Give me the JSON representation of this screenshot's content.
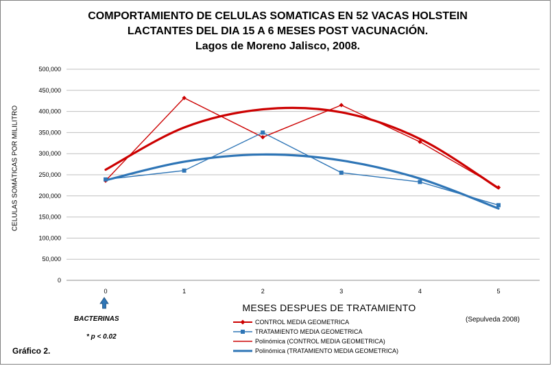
{
  "title_lines": [
    "COMPORTAMIENTO DE CELULAS SOMATICAS EN 52 VACAS  HOLSTEIN",
    "LACTANTES  DEL  DIA 15 A 6 MESES POST VACUNACIÓN.",
    "Lagos de Moreno Jalisco, 2008."
  ],
  "chart_data": {
    "type": "line",
    "title": "COMPORTAMIENTO DE CELULAS SOMATICAS EN 52 VACAS  HOLSTEIN LACTANTES  DEL  DIA 15 A 6 MESES POST VACUNACIÓN. Lagos de Moreno Jalisco, 2008.",
    "xlabel": "MESES  DESPUES DE TRATAMIENTO",
    "ylabel": "CELULAS SOMÁTICAS POR MILILITRO",
    "x": [
      0,
      1,
      2,
      3,
      4,
      5
    ],
    "x_tick_labels": [
      "0",
      "1",
      "2",
      "3",
      "4",
      "5"
    ],
    "y_tick_labels": [
      "0",
      "50,000",
      "100,000",
      "150,000",
      "200,000",
      "250,000",
      "300,000",
      "350,000",
      "400,000",
      "450,000",
      "500,000"
    ],
    "ylim": [
      0,
      500000
    ],
    "grid": true,
    "legend_position": "bottom",
    "series": [
      {
        "name": "CONTROL MEDIA GEOMETRICA",
        "kind": "data",
        "marker": "diamond",
        "color": "#cc0000",
        "values": [
          236000,
          432000,
          339000,
          415000,
          328000,
          220000
        ]
      },
      {
        "name": "TRATAMIENTO  MEDIA GEOMETRICA",
        "kind": "data",
        "marker": "square",
        "color": "#2e75b6",
        "values": [
          239000,
          260000,
          350000,
          255000,
          233000,
          178000
        ]
      },
      {
        "name": "Polinómica (CONTROL MEDIA GEOMETRICA)",
        "kind": "trend",
        "color": "#cc0000",
        "values": [
          262000,
          362000,
          405000,
          398000,
          335000,
          218000
        ]
      },
      {
        "name": "Polinómica (TRATAMIENTO  MEDIA GEOMETRICA)",
        "kind": "trend",
        "color": "#2e75b6",
        "values": [
          237000,
          281000,
          298000,
          284000,
          241000,
          170000
        ]
      }
    ]
  },
  "annotations": {
    "bacterinas": "BACTERINAS",
    "pvalue": "* p < 0.02",
    "grafico": "Gráfico 2.",
    "source": "(Sepulveda 2008)"
  },
  "legend": {
    "items": [
      "CONTROL MEDIA GEOMETRICA",
      "TRATAMIENTO  MEDIA GEOMETRICA",
      "Polinómica (CONTROL MEDIA GEOMETRICA)",
      "Polinómica (TRATAMIENTO  MEDIA GEOMETRICA)"
    ]
  },
  "colors": {
    "control": "#cc0000",
    "treatment": "#2e75b6",
    "arrow": "#2e75b6",
    "grid": "#bfbfbf"
  },
  "icons": {
    "arrow": "arrow-up-icon"
  }
}
